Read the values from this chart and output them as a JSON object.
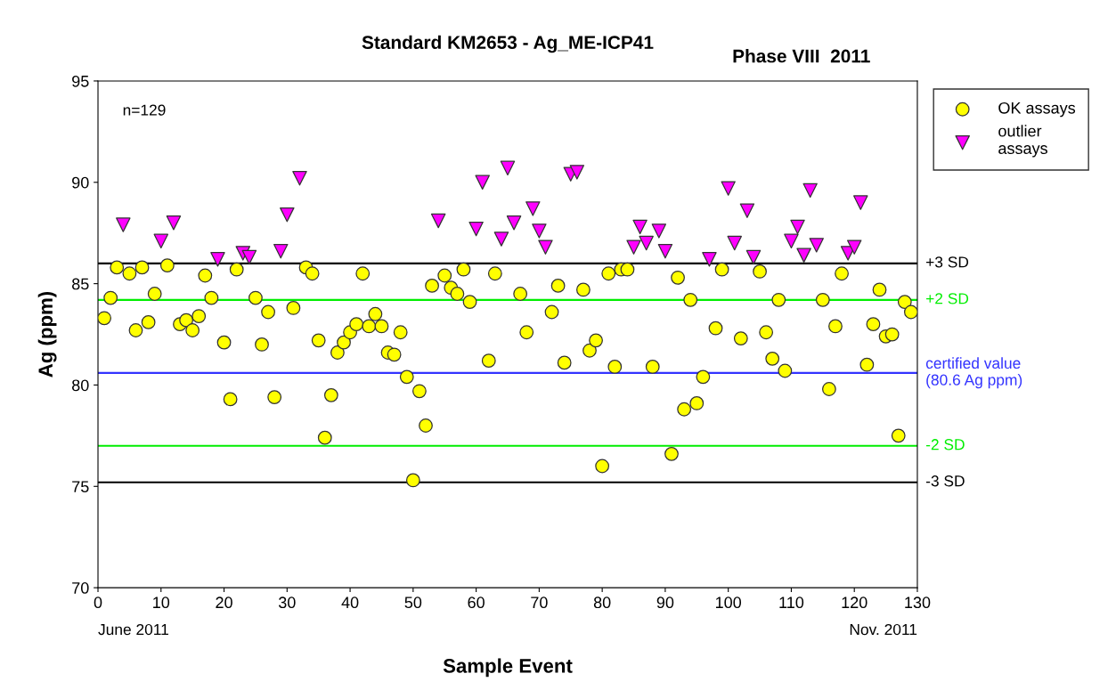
{
  "chart_data": {
    "type": "scatter",
    "title": "Standard KM2653 - Ag_ME-ICP41",
    "subtitle": "Phase VIII  2011",
    "xlabel": "Sample Event",
    "ylabel": "Ag (ppm)",
    "annotations": [
      "n=129",
      "June 2011",
      "Nov. 2011"
    ],
    "xlim": [
      0,
      130
    ],
    "xticks": [
      0,
      10,
      20,
      30,
      40,
      50,
      60,
      70,
      80,
      90,
      100,
      110,
      120,
      130
    ],
    "ylim": [
      70,
      95
    ],
    "yticks": [
      70,
      75,
      80,
      85,
      90,
      95
    ],
    "grid": false,
    "legend": "top right",
    "series": [
      {
        "name": "OK assays",
        "color": "#ffff00",
        "marker": "circle",
        "x": [
          1,
          2,
          3,
          5,
          6,
          7,
          8,
          9,
          11,
          13,
          14,
          15,
          16,
          17,
          18,
          20,
          21,
          22,
          25,
          26,
          27,
          28,
          31,
          33,
          34,
          35,
          36,
          37,
          38,
          39,
          40,
          41,
          42,
          43,
          44,
          45,
          46,
          47,
          48,
          49,
          50,
          51,
          52,
          53,
          55,
          56,
          57,
          58,
          59,
          62,
          63,
          67,
          68,
          72,
          73,
          74,
          77,
          78,
          79,
          80,
          81,
          82,
          83,
          84,
          88,
          91,
          92,
          93,
          94,
          95,
          96,
          98,
          99,
          102,
          105,
          106,
          107,
          108,
          109,
          115,
          116,
          117,
          118,
          122,
          123,
          124,
          125,
          126,
          127,
          128,
          129
        ],
        "values": [
          83.3,
          84.3,
          85.8,
          85.5,
          82.7,
          85.8,
          83.1,
          84.5,
          85.9,
          83.0,
          83.2,
          82.7,
          83.4,
          85.4,
          84.3,
          82.1,
          79.3,
          85.7,
          84.3,
          82.0,
          83.6,
          79.4,
          83.8,
          85.8,
          85.5,
          82.2,
          77.4,
          79.5,
          81.6,
          82.1,
          82.6,
          83.0,
          85.5,
          82.9,
          83.5,
          82.9,
          81.6,
          81.5,
          82.6,
          80.4,
          75.3,
          79.7,
          78.0,
          84.9,
          85.4,
          84.8,
          84.5,
          85.7,
          84.1,
          81.2,
          85.5,
          84.5,
          82.6,
          83.6,
          84.9,
          81.1,
          84.7,
          81.7,
          82.2,
          76.0,
          85.5,
          80.9,
          85.7,
          85.7,
          80.9,
          76.6,
          85.3,
          78.8,
          84.2,
          79.1,
          80.4,
          82.8,
          85.7,
          82.3,
          85.6,
          82.6,
          81.3,
          84.2,
          80.7,
          84.2,
          79.8,
          82.9,
          85.5,
          81.0,
          83.0,
          84.7,
          82.4,
          82.5,
          77.5,
          84.1,
          83.6
        ]
      },
      {
        "name": "outlier\nassays",
        "color": "#ff00ff",
        "marker": "triangle",
        "x": [
          4,
          10,
          12,
          19,
          23,
          24,
          29,
          30,
          32,
          54,
          60,
          61,
          64,
          65,
          66,
          69,
          70,
          71,
          75,
          76,
          85,
          86,
          87,
          89,
          90,
          97,
          100,
          101,
          103,
          104,
          110,
          111,
          112,
          113,
          114,
          119,
          120,
          121
        ],
        "values": [
          87.9,
          87.1,
          88.0,
          86.2,
          86.5,
          86.3,
          86.6,
          88.4,
          90.2,
          88.1,
          87.7,
          90.0,
          87.2,
          90.7,
          88.0,
          88.7,
          87.6,
          86.8,
          90.4,
          90.5,
          86.8,
          87.8,
          87.0,
          87.6,
          86.6,
          86.2,
          89.7,
          87.0,
          88.6,
          86.3,
          87.1,
          87.8,
          86.4,
          89.6,
          86.9,
          86.5,
          86.8,
          89.0
        ]
      }
    ],
    "ref_lines": [
      {
        "axis": "y",
        "value": 86.0,
        "label": "+3 SD",
        "color": "#000000"
      },
      {
        "axis": "y",
        "value": 84.2,
        "label": "+2 SD",
        "color": "#00ee00"
      },
      {
        "axis": "y",
        "value": 80.6,
        "label": "certified value\n(80.6 Ag ppm)",
        "color": "#3333ff"
      },
      {
        "axis": "y",
        "value": 77.0,
        "label": "-2 SD",
        "color": "#00ee00"
      },
      {
        "axis": "y",
        "value": 75.2,
        "label": "-3 SD",
        "color": "#000000"
      }
    ]
  }
}
